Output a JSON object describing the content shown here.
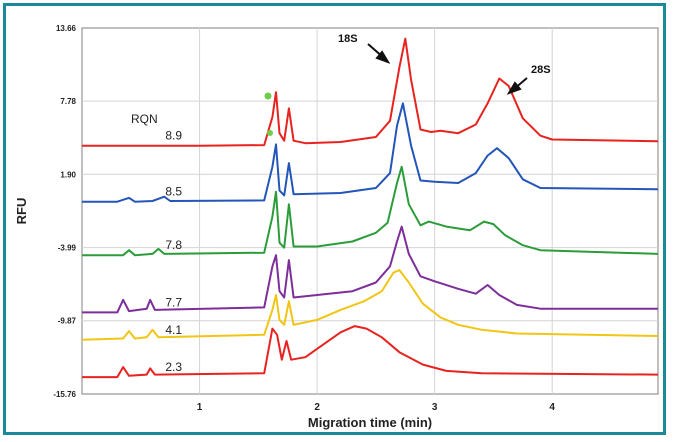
{
  "chart_data": {
    "type": "line",
    "title": "",
    "xlabel": "Migration time (min)",
    "ylabel": "RFU",
    "xlim": [
      0,
      4.9
    ],
    "ylim": [
      -15.76,
      13.66
    ],
    "x_ticks": [
      "1",
      "2",
      "3",
      "4"
    ],
    "y_ticks": [
      "13.66",
      "7.78",
      "1.90",
      "-3.99",
      "-9.87",
      "-15.76"
    ],
    "grid": true,
    "legend_title": "RQN",
    "annotations": [
      "18S",
      "28S"
    ],
    "series": [
      {
        "name": "8.9",
        "color": "#e8231f",
        "baseline": 4.2,
        "points": [
          [
            0.0,
            4.2
          ],
          [
            1.0,
            4.2
          ],
          [
            1.55,
            4.25
          ],
          [
            1.62,
            6.5
          ],
          [
            1.65,
            8.5
          ],
          [
            1.68,
            5.2
          ],
          [
            1.72,
            4.6
          ],
          [
            1.76,
            7.2
          ],
          [
            1.8,
            4.6
          ],
          [
            1.9,
            4.4
          ],
          [
            2.2,
            4.5
          ],
          [
            2.5,
            4.9
          ],
          [
            2.62,
            6.2
          ],
          [
            2.7,
            10.5
          ],
          [
            2.75,
            12.8
          ],
          [
            2.8,
            9.5
          ],
          [
            2.88,
            5.5
          ],
          [
            2.97,
            5.3
          ],
          [
            3.05,
            5.4
          ],
          [
            3.2,
            5.2
          ],
          [
            3.35,
            5.9
          ],
          [
            3.45,
            7.6
          ],
          [
            3.55,
            9.6
          ],
          [
            3.63,
            9.0
          ],
          [
            3.75,
            6.4
          ],
          [
            3.9,
            5.0
          ],
          [
            4.0,
            4.7
          ],
          [
            4.9,
            4.55
          ]
        ]
      },
      {
        "name": "8.5",
        "color": "#2356b8",
        "baseline": -0.3,
        "points": [
          [
            0.0,
            -0.3
          ],
          [
            0.3,
            -0.3
          ],
          [
            0.4,
            0.0
          ],
          [
            0.45,
            -0.3
          ],
          [
            0.6,
            -0.25
          ],
          [
            0.7,
            0.1
          ],
          [
            0.75,
            -0.25
          ],
          [
            1.55,
            -0.2
          ],
          [
            1.62,
            2.5
          ],
          [
            1.65,
            4.3
          ],
          [
            1.68,
            0.6
          ],
          [
            1.72,
            0.2
          ],
          [
            1.76,
            2.8
          ],
          [
            1.8,
            0.3
          ],
          [
            2.2,
            0.4
          ],
          [
            2.5,
            0.8
          ],
          [
            2.62,
            2.0
          ],
          [
            2.68,
            5.8
          ],
          [
            2.73,
            7.6
          ],
          [
            2.8,
            4.2
          ],
          [
            2.88,
            1.4
          ],
          [
            3.0,
            1.3
          ],
          [
            3.2,
            1.2
          ],
          [
            3.35,
            2.0
          ],
          [
            3.45,
            3.4
          ],
          [
            3.53,
            4.0
          ],
          [
            3.63,
            3.2
          ],
          [
            3.75,
            1.5
          ],
          [
            3.9,
            0.8
          ],
          [
            4.9,
            0.7
          ]
        ]
      },
      {
        "name": "7.8",
        "color": "#2a9d3a",
        "baseline": -4.6,
        "points": [
          [
            0.0,
            -4.6
          ],
          [
            0.35,
            -4.6
          ],
          [
            0.4,
            -4.2
          ],
          [
            0.45,
            -4.6
          ],
          [
            0.6,
            -4.5
          ],
          [
            0.65,
            -4.1
          ],
          [
            0.7,
            -4.5
          ],
          [
            1.55,
            -4.4
          ],
          [
            1.62,
            -1.5
          ],
          [
            1.65,
            0.5
          ],
          [
            1.68,
            -3.6
          ],
          [
            1.72,
            -4.0
          ],
          [
            1.76,
            -0.5
          ],
          [
            1.8,
            -3.9
          ],
          [
            2.0,
            -3.9
          ],
          [
            2.3,
            -3.5
          ],
          [
            2.5,
            -2.8
          ],
          [
            2.6,
            -2.0
          ],
          [
            2.68,
            1.2
          ],
          [
            2.72,
            2.5
          ],
          [
            2.78,
            -0.5
          ],
          [
            2.88,
            -2.2
          ],
          [
            2.95,
            -1.9
          ],
          [
            3.1,
            -2.3
          ],
          [
            3.3,
            -2.6
          ],
          [
            3.42,
            -1.9
          ],
          [
            3.5,
            -2.1
          ],
          [
            3.6,
            -3.0
          ],
          [
            3.75,
            -3.8
          ],
          [
            3.9,
            -4.2
          ],
          [
            4.9,
            -4.5
          ]
        ]
      },
      {
        "name": "7.7",
        "color": "#7d2e9a",
        "baseline": -9.2,
        "points": [
          [
            0.0,
            -9.2
          ],
          [
            0.3,
            -9.2
          ],
          [
            0.35,
            -8.2
          ],
          [
            0.4,
            -9.1
          ],
          [
            0.55,
            -8.9
          ],
          [
            0.58,
            -8.2
          ],
          [
            0.62,
            -9.0
          ],
          [
            1.55,
            -8.8
          ],
          [
            1.62,
            -5.5
          ],
          [
            1.65,
            -4.6
          ],
          [
            1.68,
            -7.5
          ],
          [
            1.72,
            -8.0
          ],
          [
            1.76,
            -5.0
          ],
          [
            1.8,
            -8.0
          ],
          [
            2.0,
            -7.8
          ],
          [
            2.3,
            -7.5
          ],
          [
            2.5,
            -6.8
          ],
          [
            2.62,
            -5.5
          ],
          [
            2.68,
            -3.5
          ],
          [
            2.72,
            -2.3
          ],
          [
            2.78,
            -4.5
          ],
          [
            2.88,
            -6.3
          ],
          [
            3.0,
            -6.7
          ],
          [
            3.2,
            -7.3
          ],
          [
            3.35,
            -7.7
          ],
          [
            3.45,
            -7.0
          ],
          [
            3.55,
            -7.8
          ],
          [
            3.7,
            -8.6
          ],
          [
            3.9,
            -8.9
          ],
          [
            4.9,
            -8.9
          ]
        ]
      },
      {
        "name": "4.1",
        "color": "#f2c515",
        "baseline": -11.4,
        "points": [
          [
            0.0,
            -11.4
          ],
          [
            0.35,
            -11.3
          ],
          [
            0.4,
            -10.7
          ],
          [
            0.45,
            -11.3
          ],
          [
            0.55,
            -11.2
          ],
          [
            0.6,
            -10.6
          ],
          [
            0.65,
            -11.2
          ],
          [
            1.55,
            -11.0
          ],
          [
            1.62,
            -9.0
          ],
          [
            1.65,
            -7.8
          ],
          [
            1.68,
            -9.8
          ],
          [
            1.72,
            -10.2
          ],
          [
            1.76,
            -8.3
          ],
          [
            1.8,
            -10.2
          ],
          [
            2.0,
            -9.8
          ],
          [
            2.2,
            -9.0
          ],
          [
            2.4,
            -8.3
          ],
          [
            2.55,
            -7.5
          ],
          [
            2.65,
            -6.0
          ],
          [
            2.7,
            -5.8
          ],
          [
            2.78,
            -6.8
          ],
          [
            2.9,
            -8.5
          ],
          [
            3.05,
            -9.6
          ],
          [
            3.2,
            -10.2
          ],
          [
            3.4,
            -10.6
          ],
          [
            3.7,
            -10.9
          ],
          [
            4.9,
            -11.1
          ]
        ]
      },
      {
        "name": "2.3",
        "color": "#e8231f",
        "baseline": -14.4,
        "points": [
          [
            0.0,
            -14.4
          ],
          [
            0.3,
            -14.4
          ],
          [
            0.35,
            -13.6
          ],
          [
            0.4,
            -14.3
          ],
          [
            0.55,
            -14.2
          ],
          [
            0.58,
            -13.7
          ],
          [
            0.62,
            -14.2
          ],
          [
            1.55,
            -14.1
          ],
          [
            1.62,
            -10.5
          ],
          [
            1.66,
            -11.0
          ],
          [
            1.7,
            -13.0
          ],
          [
            1.74,
            -11.5
          ],
          [
            1.78,
            -13.0
          ],
          [
            1.9,
            -12.8
          ],
          [
            2.05,
            -11.8
          ],
          [
            2.2,
            -10.8
          ],
          [
            2.32,
            -10.3
          ],
          [
            2.42,
            -10.5
          ],
          [
            2.55,
            -11.2
          ],
          [
            2.7,
            -12.4
          ],
          [
            2.9,
            -13.4
          ],
          [
            3.1,
            -13.9
          ],
          [
            3.4,
            -14.1
          ],
          [
            4.9,
            -14.2
          ]
        ]
      }
    ]
  }
}
